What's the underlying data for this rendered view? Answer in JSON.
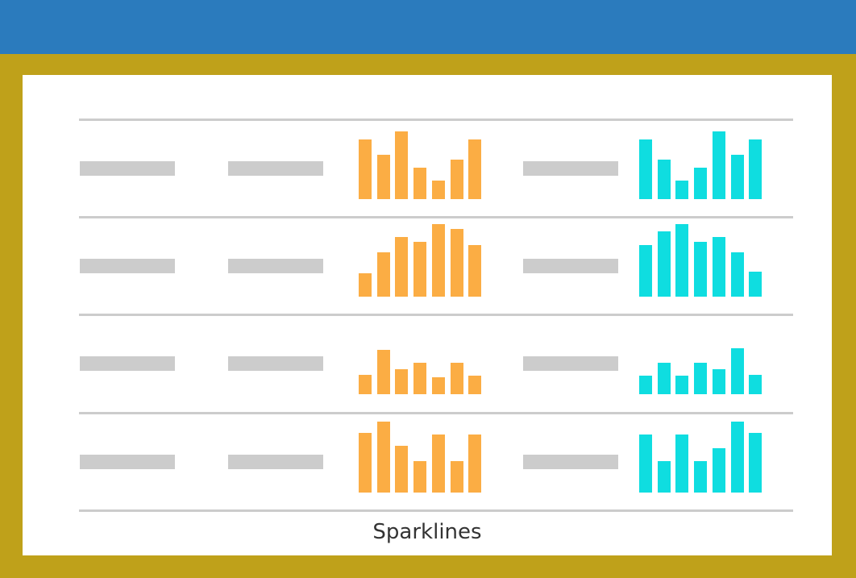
{
  "colors": {
    "top_bar": "#2b7bbd",
    "frame": "#bfa11a",
    "panel": "#ffffff",
    "placeholder": "#cccccc",
    "rule": "#cccccc",
    "series_a": "#fbad44",
    "series_b": "#0fdde0"
  },
  "caption": "Sparklines",
  "chart_data": {
    "type": "bar",
    "kind": "sparkline-grid",
    "rows": [
      {
        "series_a": [
          0.82,
          0.61,
          0.93,
          0.43,
          0.25,
          0.54,
          0.82
        ],
        "series_b": [
          0.82,
          0.54,
          0.25,
          0.43,
          0.93,
          0.61,
          0.82
        ]
      },
      {
        "series_a": [
          0.32,
          0.61,
          0.82,
          0.75,
          1.0,
          0.93,
          0.71
        ],
        "series_b": [
          0.71,
          0.9,
          1.0,
          0.75,
          0.82,
          0.61,
          0.34
        ]
      },
      {
        "series_a": [
          0.27,
          0.61,
          0.34,
          0.43,
          0.23,
          0.43,
          0.25
        ],
        "series_b": [
          0.25,
          0.43,
          0.25,
          0.43,
          0.34,
          0.63,
          0.27
        ]
      },
      {
        "series_a": [
          0.82,
          0.98,
          0.64,
          0.43,
          0.8,
          0.43,
          0.8
        ],
        "series_b": [
          0.8,
          0.43,
          0.8,
          0.43,
          0.61,
          0.98,
          0.82
        ]
      }
    ]
  }
}
